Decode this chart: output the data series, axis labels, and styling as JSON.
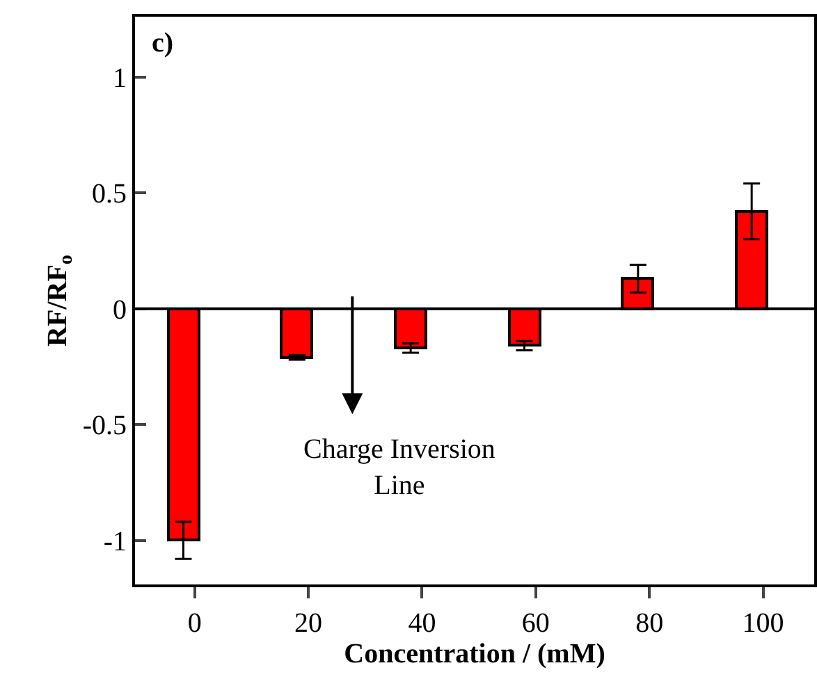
{
  "chart_data": {
    "type": "bar",
    "xlabel": "Concentration / (mM)",
    "ylabel": "RF/RF$_{o}$",
    "x": [
      -2,
      18,
      38,
      58,
      78,
      98
    ],
    "values": [
      -1.0,
      -0.21,
      -0.17,
      -0.16,
      0.13,
      0.42
    ],
    "errors": [
      0.08,
      0.01,
      0.02,
      0.02,
      0.06,
      0.12
    ],
    "color": "#ff0000",
    "xlim": [
      -10.5,
      109
    ],
    "xticks": [
      0,
      20,
      40,
      60,
      80,
      100
    ],
    "ylim": [
      -1.19,
      1.26
    ],
    "yticks": [
      -1,
      -0.5,
      0,
      0.5,
      1
    ],
    "annotations": [
      "c)",
      "Charge Inversion\nLine"
    ],
    "ref_lines": [
      {
        "axis": "y",
        "value": 0
      }
    ]
  }
}
